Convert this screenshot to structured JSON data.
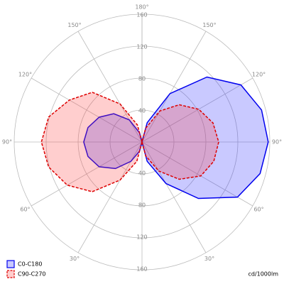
{
  "chart_data": {
    "type": "polar",
    "unit_label": "cd/1000lm",
    "x": [
      0,
      15,
      30,
      45,
      60,
      75,
      90,
      105,
      120,
      135,
      150,
      165,
      180
    ],
    "rlim": [
      0,
      160
    ],
    "rticks": [
      40,
      80,
      120,
      160
    ],
    "angle_ticks": [
      {
        "value": 30,
        "label": "30°"
      },
      {
        "value": 60,
        "label": "60°"
      },
      {
        "value": 90,
        "label": "90°"
      },
      {
        "value": 120,
        "label": "120°"
      },
      {
        "value": 150,
        "label": "150°"
      },
      {
        "value": 180,
        "label": "180°"
      }
    ],
    "series": [
      {
        "name": "C0-C180",
        "color": "#0000ee",
        "fill": "rgba(40,40,255,0.25)",
        "dashed": false,
        "values": [
          0,
          25,
          60,
          100,
          138,
          153,
          158,
          155,
          143,
          115,
          70,
          25,
          0
        ],
        "values_left": [
          0,
          12,
          28,
          47,
          62,
          70,
          73,
          70,
          62,
          50,
          32,
          12,
          0
        ]
      },
      {
        "name": "C90-C270",
        "color": "#dd0000",
        "fill": "rgba(255,60,60,0.25)",
        "dashed": true,
        "values": [
          0,
          18,
          42,
          66,
          85,
          93,
          96,
          92,
          82,
          66,
          45,
          18,
          0
        ],
        "values_left": [
          0,
          25,
          55,
          88,
          108,
          121,
          126,
          121,
          105,
          88,
          55,
          22,
          0
        ]
      }
    ]
  }
}
